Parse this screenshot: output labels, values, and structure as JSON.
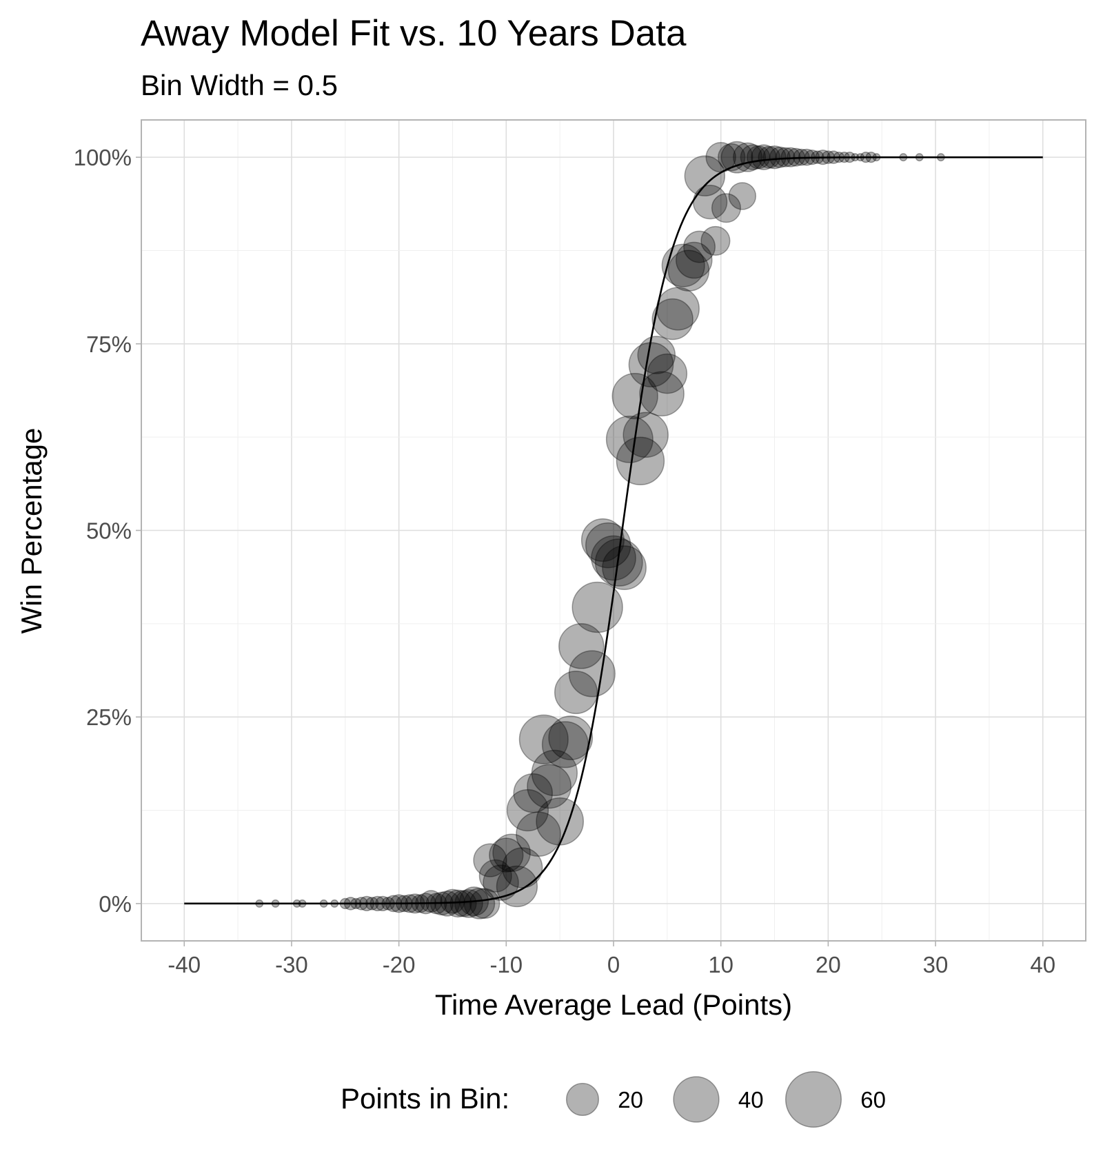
{
  "chart_data": {
    "type": "scatter",
    "title": "Away Model Fit vs. 10 Years Data",
    "subtitle": "Bin Width = 0.5",
    "xlabel": "Time Average Lead (Points)",
    "ylabel": "Win Percentage",
    "xlim": [
      -44,
      44
    ],
    "ylim": [
      -0.05,
      1.05
    ],
    "x_ticks": [
      -40,
      -30,
      -20,
      -10,
      0,
      10,
      20,
      30,
      40
    ],
    "x_tick_labels": [
      "-40",
      "-30",
      "-20",
      "-10",
      "0",
      "10",
      "20",
      "30",
      "40"
    ],
    "y_ticks": [
      0,
      0.25,
      0.5,
      0.75,
      1
    ],
    "y_tick_labels": [
      "0%",
      "25%",
      "50%",
      "75%",
      "100%"
    ],
    "grid": true,
    "point_color": "#000000",
    "point_opacity": 0.3,
    "line_color": "#000000",
    "legend": {
      "title": "Points in Bin:",
      "position": "bottom",
      "entries": [
        {
          "label": "20",
          "n": 20
        },
        {
          "label": "40",
          "n": 40
        },
        {
          "label": "60",
          "n": 60
        }
      ]
    },
    "series": [
      {
        "type": "scatter",
        "points": [
          {
            "x": -33,
            "y": 0,
            "n": 1
          },
          {
            "x": -31.5,
            "y": 0,
            "n": 1
          },
          {
            "x": -29.5,
            "y": 0,
            "n": 1
          },
          {
            "x": -29,
            "y": 0,
            "n": 1
          },
          {
            "x": -27,
            "y": 0,
            "n": 1
          },
          {
            "x": -26,
            "y": 0,
            "n": 1
          },
          {
            "x": -25,
            "y": 0,
            "n": 2
          },
          {
            "x": -24.5,
            "y": 0,
            "n": 3
          },
          {
            "x": -24,
            "y": 0,
            "n": 2
          },
          {
            "x": -23.5,
            "y": 0,
            "n": 3
          },
          {
            "x": -23,
            "y": 0,
            "n": 4
          },
          {
            "x": -22.5,
            "y": 0,
            "n": 3
          },
          {
            "x": -22,
            "y": 0,
            "n": 4
          },
          {
            "x": -21.5,
            "y": 0,
            "n": 4
          },
          {
            "x": -21,
            "y": 0,
            "n": 3
          },
          {
            "x": -20.5,
            "y": 0,
            "n": 5
          },
          {
            "x": -20,
            "y": 0,
            "n": 6
          },
          {
            "x": -19.5,
            "y": 0,
            "n": 5
          },
          {
            "x": -19,
            "y": 0,
            "n": 6
          },
          {
            "x": -18.5,
            "y": 0,
            "n": 7
          },
          {
            "x": -18,
            "y": 0,
            "n": 6
          },
          {
            "x": -17.5,
            "y": 0,
            "n": 8
          },
          {
            "x": -17,
            "y": 0.003,
            "n": 9
          },
          {
            "x": -16.5,
            "y": 0,
            "n": 8
          },
          {
            "x": -16,
            "y": 0,
            "n": 10
          },
          {
            "x": -15.5,
            "y": 0,
            "n": 12
          },
          {
            "x": -15,
            "y": 0.003,
            "n": 11
          },
          {
            "x": -14.5,
            "y": 0,
            "n": 14
          },
          {
            "x": -14,
            "y": 0,
            "n": 13
          },
          {
            "x": -13.5,
            "y": 0,
            "n": 15
          },
          {
            "x": -13,
            "y": 0.003,
            "n": 16
          },
          {
            "x": -12.5,
            "y": 0,
            "n": 18
          },
          {
            "x": -12,
            "y": 0,
            "n": 17
          },
          {
            "x": -11.5,
            "y": 0.058,
            "n": 21
          },
          {
            "x": -11,
            "y": 0.037,
            "n": 20
          },
          {
            "x": -10.5,
            "y": 0.028,
            "n": 24
          },
          {
            "x": -10,
            "y": 0.065,
            "n": 22
          },
          {
            "x": -9.5,
            "y": 0.068,
            "n": 27
          },
          {
            "x": -9,
            "y": 0.023,
            "n": 32
          },
          {
            "x": -8.5,
            "y": 0.048,
            "n": 31
          },
          {
            "x": -8,
            "y": 0.125,
            "n": 33
          },
          {
            "x": -7.5,
            "y": 0.148,
            "n": 29
          },
          {
            "x": -7,
            "y": 0.093,
            "n": 38
          },
          {
            "x": -6.5,
            "y": 0.22,
            "n": 46
          },
          {
            "x": -6,
            "y": 0.157,
            "n": 37
          },
          {
            "x": -5.5,
            "y": 0.175,
            "n": 40
          },
          {
            "x": -5,
            "y": 0.11,
            "n": 43
          },
          {
            "x": -4.5,
            "y": 0.213,
            "n": 41
          },
          {
            "x": -4,
            "y": 0.222,
            "n": 37
          },
          {
            "x": -3.5,
            "y": 0.283,
            "n": 35
          },
          {
            "x": -3,
            "y": 0.345,
            "n": 39
          },
          {
            "x": -2,
            "y": 0.308,
            "n": 41
          },
          {
            "x": -1.5,
            "y": 0.397,
            "n": 49
          },
          {
            "x": -1,
            "y": 0.487,
            "n": 35
          },
          {
            "x": -0.5,
            "y": 0.48,
            "n": 39
          },
          {
            "x": 0,
            "y": 0.463,
            "n": 38
          },
          {
            "x": 0.5,
            "y": 0.457,
            "n": 43
          },
          {
            "x": 1,
            "y": 0.45,
            "n": 37
          },
          {
            "x": 1.5,
            "y": 0.622,
            "n": 42
          },
          {
            "x": 2,
            "y": 0.68,
            "n": 40
          },
          {
            "x": 2.5,
            "y": 0.593,
            "n": 44
          },
          {
            "x": 3,
            "y": 0.628,
            "n": 39
          },
          {
            "x": 3.5,
            "y": 0.722,
            "n": 38
          },
          {
            "x": 4,
            "y": 0.735,
            "n": 27
          },
          {
            "x": 4.5,
            "y": 0.683,
            "n": 38
          },
          {
            "x": 5,
            "y": 0.71,
            "n": 30
          },
          {
            "x": 5.5,
            "y": 0.783,
            "n": 32
          },
          {
            "x": 6,
            "y": 0.797,
            "n": 35
          },
          {
            "x": 6.5,
            "y": 0.855,
            "n": 35
          },
          {
            "x": 7,
            "y": 0.848,
            "n": 32
          },
          {
            "x": 7.5,
            "y": 0.862,
            "n": 25
          },
          {
            "x": 8,
            "y": 0.88,
            "n": 19
          },
          {
            "x": 8.5,
            "y": 0.975,
            "n": 31
          },
          {
            "x": 9,
            "y": 0.94,
            "n": 22
          },
          {
            "x": 9.5,
            "y": 0.888,
            "n": 16
          },
          {
            "x": 10,
            "y": 1,
            "n": 17
          },
          {
            "x": 10.5,
            "y": 0.932,
            "n": 16
          },
          {
            "x": 11,
            "y": 1,
            "n": 14
          },
          {
            "x": 11.5,
            "y": 1,
            "n": 19
          },
          {
            "x": 12,
            "y": 0.948,
            "n": 14
          },
          {
            "x": 12.5,
            "y": 1,
            "n": 16
          },
          {
            "x": 13,
            "y": 1,
            "n": 12
          },
          {
            "x": 13.5,
            "y": 1,
            "n": 10
          },
          {
            "x": 14,
            "y": 1,
            "n": 12
          },
          {
            "x": 14.5,
            "y": 1,
            "n": 9
          },
          {
            "x": 15,
            "y": 1,
            "n": 10
          },
          {
            "x": 15.5,
            "y": 1,
            "n": 8
          },
          {
            "x": 16,
            "y": 1,
            "n": 7
          },
          {
            "x": 16.5,
            "y": 1,
            "n": 7
          },
          {
            "x": 17,
            "y": 1,
            "n": 6
          },
          {
            "x": 17.5,
            "y": 1,
            "n": 5
          },
          {
            "x": 18,
            "y": 1,
            "n": 5
          },
          {
            "x": 18.5,
            "y": 1,
            "n": 4
          },
          {
            "x": 19,
            "y": 1,
            "n": 3
          },
          {
            "x": 19.5,
            "y": 1,
            "n": 4
          },
          {
            "x": 20,
            "y": 1,
            "n": 3
          },
          {
            "x": 20.5,
            "y": 1,
            "n": 3
          },
          {
            "x": 21,
            "y": 1,
            "n": 2
          },
          {
            "x": 21.5,
            "y": 1,
            "n": 2
          },
          {
            "x": 22,
            "y": 1,
            "n": 2
          },
          {
            "x": 22.5,
            "y": 1,
            "n": 1
          },
          {
            "x": 23,
            "y": 1,
            "n": 1
          },
          {
            "x": 23.5,
            "y": 1,
            "n": 2
          },
          {
            "x": 24,
            "y": 1,
            "n": 2
          },
          {
            "x": 24.5,
            "y": 1,
            "n": 1
          },
          {
            "x": 27,
            "y": 1,
            "n": 1
          },
          {
            "x": 28.5,
            "y": 1,
            "n": 1
          },
          {
            "x": 30.5,
            "y": 1,
            "n": 1
          }
        ]
      },
      {
        "type": "line",
        "function": "logistic",
        "x_range": [
          -40,
          40
        ],
        "midpoint": 0.8,
        "slope": 0.42
      }
    ]
  }
}
